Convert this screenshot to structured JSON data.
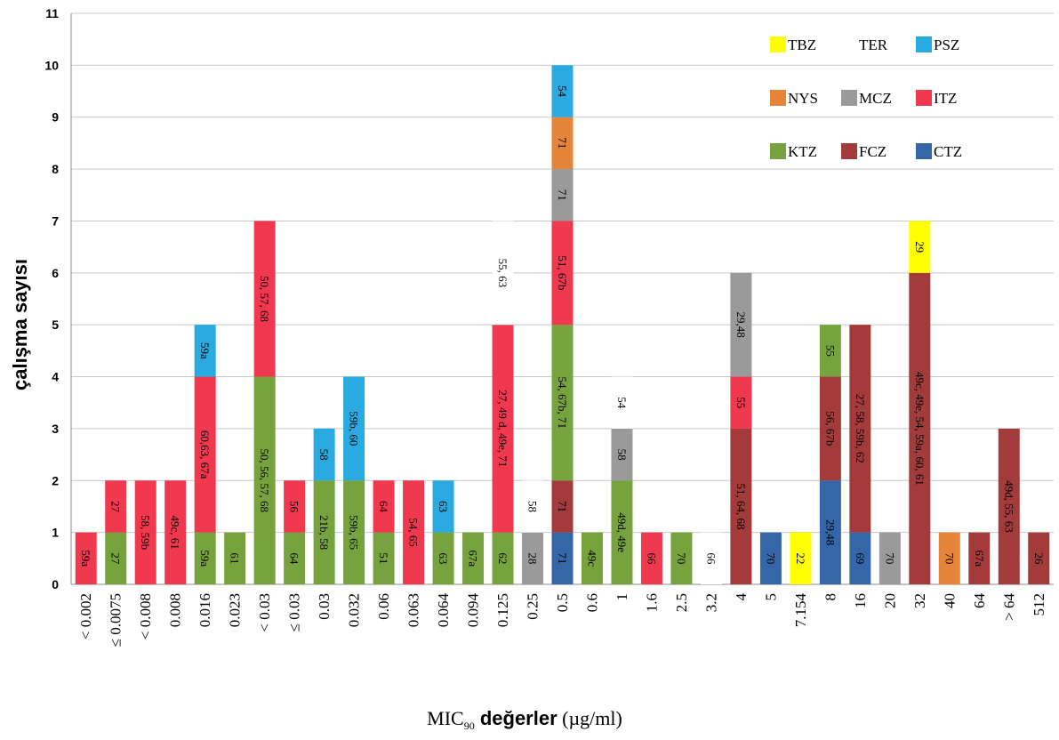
{
  "chart_data": {
    "type": "bar",
    "stacked": true,
    "title": "",
    "ylabel": "çalışma sayısı",
    "xlabel": "MIC90 değerler (µg/ml)",
    "xlabel_parts": {
      "main": "MIC",
      "sub": "90",
      "bold": " değerler",
      "rest": " (µg/ml)"
    },
    "ylim": [
      0,
      11
    ],
    "yticks": [
      0,
      1,
      2,
      3,
      4,
      5,
      6,
      7,
      8,
      9,
      10,
      11
    ],
    "grid": true,
    "legend_position": "top-right",
    "series": [
      {
        "name": "TBZ",
        "color": "#ffff00"
      },
      {
        "name": "TER",
        "color": "#ffffff"
      },
      {
        "name": "PSZ",
        "color": "#29abe2"
      },
      {
        "name": "NYS",
        "color": "#e6843a"
      },
      {
        "name": "MCZ",
        "color": "#9a9a9a"
      },
      {
        "name": "ITZ",
        "color": "#f0394f"
      },
      {
        "name": "KTZ",
        "color": "#77a33f"
      },
      {
        "name": "FCZ",
        "color": "#a33b3b"
      },
      {
        "name": "CTZ",
        "color": "#3566a8"
      }
    ],
    "categories": [
      "< 0.002",
      "≤ 0.0075",
      "< 0.008",
      "0.008",
      "0.016",
      "0.023",
      "< 0.03",
      "≤ 0.03",
      "0.03",
      "0.032",
      "0.06",
      "0.063",
      "0.064",
      "0.094",
      "0.125",
      "0.25",
      "0.5",
      "0.6",
      "1",
      "1.6",
      "2.5",
      "3.2",
      "4",
      "5",
      "7.154",
      "8",
      "16",
      "20",
      "32",
      "40",
      "64",
      "> 64",
      "512"
    ],
    "bars": [
      [
        {
          "series": "ITZ",
          "value": 1,
          "label": "59a"
        }
      ],
      [
        {
          "series": "KTZ",
          "value": 1,
          "label": "27"
        },
        {
          "series": "ITZ",
          "value": 1,
          "label": "27"
        }
      ],
      [
        {
          "series": "ITZ",
          "value": 2,
          "label": "58, 59b"
        }
      ],
      [
        {
          "series": "ITZ",
          "value": 2,
          "label": "49c, 61"
        }
      ],
      [
        {
          "series": "KTZ",
          "value": 1,
          "label": "59a"
        },
        {
          "series": "ITZ",
          "value": 3,
          "label": "60,63, 67a"
        },
        {
          "series": "PSZ",
          "value": 1,
          "label": "59a"
        }
      ],
      [
        {
          "series": "KTZ",
          "value": 1,
          "label": "61"
        }
      ],
      [
        {
          "series": "KTZ",
          "value": 4,
          "label": "50, 56, 57, 68"
        },
        {
          "series": "ITZ",
          "value": 3,
          "label": "50, 57, 68"
        }
      ],
      [
        {
          "series": "KTZ",
          "value": 1,
          "label": "64"
        },
        {
          "series": "ITZ",
          "value": 1,
          "label": "56"
        }
      ],
      [
        {
          "series": "KTZ",
          "value": 2,
          "label": "21b, 58"
        },
        {
          "series": "PSZ",
          "value": 1,
          "label": "58"
        }
      ],
      [
        {
          "series": "KTZ",
          "value": 2,
          "label": "59b, 65"
        },
        {
          "series": "PSZ",
          "value": 2,
          "label": "59b, 60"
        }
      ],
      [
        {
          "series": "KTZ",
          "value": 1,
          "label": "51"
        },
        {
          "series": "ITZ",
          "value": 1,
          "label": "64"
        }
      ],
      [
        {
          "series": "ITZ",
          "value": 2,
          "label": "54, 65"
        }
      ],
      [
        {
          "series": "KTZ",
          "value": 1,
          "label": "63"
        },
        {
          "series": "PSZ",
          "value": 1,
          "label": "63"
        }
      ],
      [
        {
          "series": "KTZ",
          "value": 1,
          "label": "67a"
        }
      ],
      [
        {
          "series": "KTZ",
          "value": 1,
          "label": "62"
        },
        {
          "series": "ITZ",
          "value": 4,
          "label": "27, 49 d, 49e, 71"
        },
        {
          "series": "TER",
          "value": 2,
          "label": "55, 63"
        }
      ],
      [
        {
          "series": "MCZ",
          "value": 1,
          "label": "28"
        },
        {
          "series": "TER",
          "value": 1,
          "label": "58"
        }
      ],
      [
        {
          "series": "CTZ",
          "value": 1,
          "label": "71"
        },
        {
          "series": "FCZ",
          "value": 1,
          "label": "71"
        },
        {
          "series": "KTZ",
          "value": 3,
          "label": "54, 67b, 71"
        },
        {
          "series": "ITZ",
          "value": 2,
          "label": "51, 67b"
        },
        {
          "series": "MCZ",
          "value": 1,
          "label": "71"
        },
        {
          "series": "NYS",
          "value": 1,
          "label": "71"
        },
        {
          "series": "PSZ",
          "value": 1,
          "label": "54"
        }
      ],
      [
        {
          "series": "KTZ",
          "value": 1,
          "label": "49c"
        }
      ],
      [
        {
          "series": "KTZ",
          "value": 2,
          "label": "49d, 49e"
        },
        {
          "series": "MCZ",
          "value": 1,
          "label": "58"
        },
        {
          "series": "TER",
          "value": 1,
          "label": "54"
        }
      ],
      [
        {
          "series": "ITZ",
          "value": 1,
          "label": "66"
        }
      ],
      [
        {
          "series": "KTZ",
          "value": 1,
          "label": "70"
        }
      ],
      [
        {
          "series": "TER",
          "value": 1,
          "label": "66"
        }
      ],
      [
        {
          "series": "FCZ",
          "value": 3,
          "label": "51, 64, 68"
        },
        {
          "series": "ITZ",
          "value": 1,
          "label": "55"
        },
        {
          "series": "MCZ",
          "value": 2,
          "label": "29,48"
        }
      ],
      [
        {
          "series": "CTZ",
          "value": 1,
          "label": "70"
        }
      ],
      [
        {
          "series": "TBZ",
          "value": 1,
          "label": "22"
        }
      ],
      [
        {
          "series": "CTZ",
          "value": 2,
          "label": "29,48"
        },
        {
          "series": "FCZ",
          "value": 2,
          "label": "56, 67b"
        },
        {
          "series": "KTZ",
          "value": 1,
          "label": "55"
        }
      ],
      [
        {
          "series": "CTZ",
          "value": 1,
          "label": "69"
        },
        {
          "series": "FCZ",
          "value": 4,
          "label": "27, 58, 59b, 62"
        }
      ],
      [
        {
          "series": "MCZ",
          "value": 1,
          "label": "70"
        }
      ],
      [
        {
          "series": "FCZ",
          "value": 6,
          "label": "49c, 49e, 54, 59a, 60, 61"
        },
        {
          "series": "TBZ",
          "value": 1,
          "label": "29"
        }
      ],
      [
        {
          "series": "NYS",
          "value": 1,
          "label": "70"
        }
      ],
      [
        {
          "series": "FCZ",
          "value": 1,
          "label": "67a"
        }
      ],
      [
        {
          "series": "FCZ",
          "value": 3,
          "label": "49d, 55, 63"
        }
      ],
      [
        {
          "series": "FCZ",
          "value": 1,
          "label": "26"
        }
      ]
    ]
  }
}
